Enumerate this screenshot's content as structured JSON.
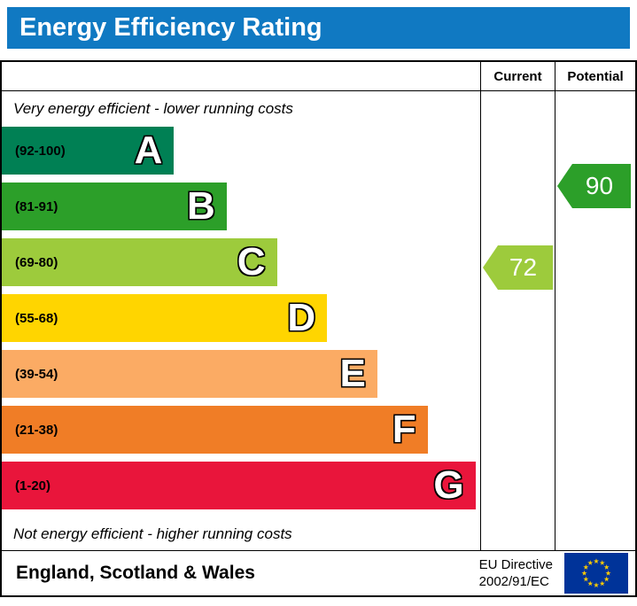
{
  "banner": {
    "title": "Energy Efficiency Rating",
    "bg_color": "#1079c2",
    "text_color": "#ffffff"
  },
  "table": {
    "columns": {
      "current_label": "Current",
      "potential_label": "Potential"
    },
    "top_note": "Very energy efficient - lower running costs",
    "bottom_note": "Not energy efficient - higher running costs",
    "bands": [
      {
        "letter": "A",
        "range": "(92-100)",
        "color": "#008054",
        "width_pct": 36
      },
      {
        "letter": "B",
        "range": "(81-91)",
        "color": "#2c9f29",
        "width_pct": 47
      },
      {
        "letter": "C",
        "range": "(69-80)",
        "color": "#9dcb3c",
        "width_pct": 57.5
      },
      {
        "letter": "D",
        "range": "(55-68)",
        "color": "#ffd500",
        "width_pct": 68
      },
      {
        "letter": "E",
        "range": "(39-54)",
        "color": "#fbab64",
        "width_pct": 78.5
      },
      {
        "letter": "F",
        "range": "(21-38)",
        "color": "#f07d26",
        "width_pct": 89
      },
      {
        "letter": "G",
        "range": "(1-20)",
        "color": "#e9153b",
        "width_pct": 99
      }
    ],
    "current": {
      "value": "72",
      "band": "C",
      "color": "#9dcb3c"
    },
    "potential": {
      "value": "90",
      "band": "B",
      "color": "#2c9f29"
    }
  },
  "footer": {
    "region": "England, Scotland & Wales",
    "directive": [
      "EU Directive",
      "2002/91/EC"
    ],
    "flag": {
      "bg": "#003399",
      "stars": "#ffcc00"
    }
  },
  "chart_data": {
    "type": "bar",
    "title": "Energy Efficiency Rating",
    "categories": [
      "A",
      "B",
      "C",
      "D",
      "E",
      "F",
      "G"
    ],
    "band_ranges": [
      "92-100",
      "81-91",
      "69-80",
      "55-68",
      "39-54",
      "21-38",
      "1-20"
    ],
    "band_colors": [
      "#008054",
      "#2c9f29",
      "#9dcb3c",
      "#ffd500",
      "#fbab64",
      "#f07d26",
      "#e9153b"
    ],
    "bar_relative_widths_pct": [
      36,
      47,
      57.5,
      68,
      78.5,
      89,
      99
    ],
    "current_rating": 72,
    "current_band": "C",
    "potential_rating": 90,
    "potential_band": "B",
    "columns": [
      "Current",
      "Potential"
    ],
    "annotations": [
      "Very energy efficient - lower running costs",
      "Not energy efficient - higher running costs"
    ],
    "region_note": "England, Scotland & Wales",
    "directive": "EU Directive 2002/91/EC",
    "legend_position": "none",
    "grid": false
  }
}
